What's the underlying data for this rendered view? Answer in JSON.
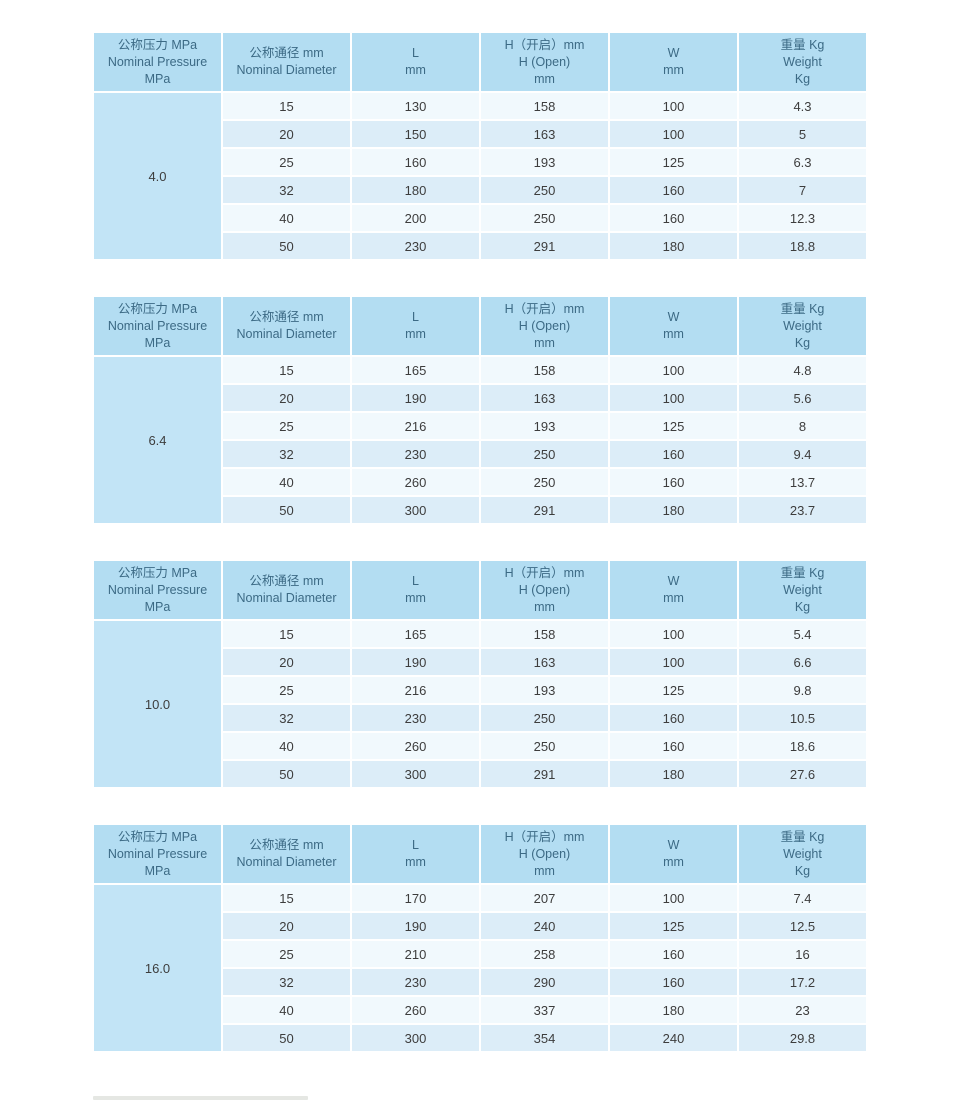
{
  "colors": {
    "header_bg": "#b3ddf2",
    "pressure_cell_bg": "#c2e4f6",
    "row_light_bg": "#f1f9fd",
    "row_dark_bg": "#dcedf8",
    "header_text": "#3c6a85",
    "pressure_text": "#48718e",
    "cell_text": "#3d3d3d",
    "page_bg": "#ffffff"
  },
  "header": {
    "pressure": [
      "公称压力 MPa",
      "Nominal Pressure",
      "MPa"
    ],
    "diameter": [
      "公称通径 mm",
      "Nominal Diameter"
    ],
    "length": [
      "L",
      "mm"
    ],
    "height_open": [
      "H（开启）mm",
      "H (Open)",
      "mm"
    ],
    "width": [
      "W",
      "mm"
    ],
    "weight": [
      "重量 Kg",
      "Weight",
      "Kg"
    ]
  },
  "tables": [
    {
      "pressure": "4.0",
      "rows": [
        {
          "dn": "15",
          "l": "130",
          "h": "158",
          "w": "100",
          "kg": "4.3"
        },
        {
          "dn": "20",
          "l": "150",
          "h": "163",
          "w": "100",
          "kg": "5"
        },
        {
          "dn": "25",
          "l": "160",
          "h": "193",
          "w": "125",
          "kg": "6.3"
        },
        {
          "dn": "32",
          "l": "180",
          "h": "250",
          "w": "160",
          "kg": "7"
        },
        {
          "dn": "40",
          "l": "200",
          "h": "250",
          "w": "160",
          "kg": "12.3"
        },
        {
          "dn": "50",
          "l": "230",
          "h": "291",
          "w": "180",
          "kg": "18.8"
        }
      ]
    },
    {
      "pressure": "6.4",
      "rows": [
        {
          "dn": "15",
          "l": "165",
          "h": "158",
          "w": "100",
          "kg": "4.8"
        },
        {
          "dn": "20",
          "l": "190",
          "h": "163",
          "w": "100",
          "kg": "5.6"
        },
        {
          "dn": "25",
          "l": "216",
          "h": "193",
          "w": "125",
          "kg": "8"
        },
        {
          "dn": "32",
          "l": "230",
          "h": "250",
          "w": "160",
          "kg": "9.4"
        },
        {
          "dn": "40",
          "l": "260",
          "h": "250",
          "w": "160",
          "kg": "13.7"
        },
        {
          "dn": "50",
          "l": "300",
          "h": "291",
          "w": "180",
          "kg": "23.7"
        }
      ]
    },
    {
      "pressure": "10.0",
      "rows": [
        {
          "dn": "15",
          "l": "165",
          "h": "158",
          "w": "100",
          "kg": "5.4"
        },
        {
          "dn": "20",
          "l": "190",
          "h": "163",
          "w": "100",
          "kg": "6.6"
        },
        {
          "dn": "25",
          "l": "216",
          "h": "193",
          "w": "125",
          "kg": "9.8"
        },
        {
          "dn": "32",
          "l": "230",
          "h": "250",
          "w": "160",
          "kg": "10.5"
        },
        {
          "dn": "40",
          "l": "260",
          "h": "250",
          "w": "160",
          "kg": "18.6"
        },
        {
          "dn": "50",
          "l": "300",
          "h": "291",
          "w": "180",
          "kg": "27.6"
        }
      ]
    },
    {
      "pressure": "16.0",
      "rows": [
        {
          "dn": "15",
          "l": "170",
          "h": "207",
          "w": "100",
          "kg": "7.4"
        },
        {
          "dn": "20",
          "l": "190",
          "h": "240",
          "w": "125",
          "kg": "12.5"
        },
        {
          "dn": "25",
          "l": "210",
          "h": "258",
          "w": "160",
          "kg": "16"
        },
        {
          "dn": "32",
          "l": "230",
          "h": "290",
          "w": "160",
          "kg": "17.2"
        },
        {
          "dn": "40",
          "l": "260",
          "h": "337",
          "w": "180",
          "kg": "23"
        },
        {
          "dn": "50",
          "l": "300",
          "h": "354",
          "w": "240",
          "kg": "29.8"
        }
      ]
    }
  ]
}
